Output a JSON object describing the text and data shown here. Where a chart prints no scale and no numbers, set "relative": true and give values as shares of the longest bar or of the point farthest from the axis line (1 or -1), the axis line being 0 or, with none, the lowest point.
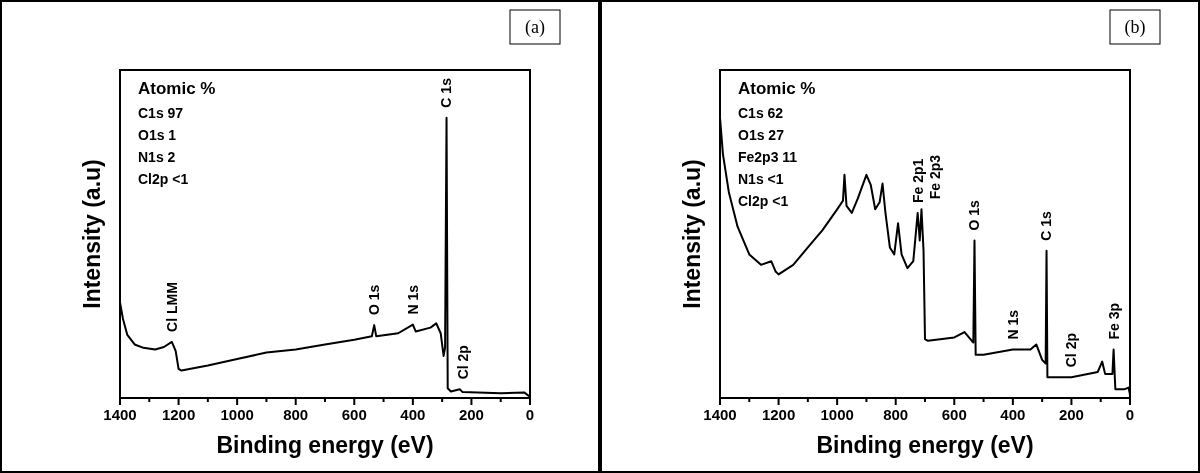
{
  "chart_data": [
    {
      "type": "line",
      "title": "(a)",
      "xlabel": "Binding energy (eV)",
      "ylabel": "Intensity (a.u)",
      "relative": true,
      "xlim": [
        1400,
        0
      ],
      "xticks": [
        1400,
        {
          "value": 1300,
          "label": null
        },
        1200,
        {
          "value": 1100,
          "label": null
        },
        1000,
        {
          "value": 900,
          "label": null
        },
        800,
        {
          "value": 700,
          "label": null
        },
        600,
        {
          "value": 500,
          "label": null
        },
        400,
        {
          "value": 300,
          "label": null
        },
        200,
        {
          "value": 100,
          "label": null
        },
        0
      ],
      "series": [
        {
          "color": "#000000",
          "x": [
            1400,
            1390,
            1375,
            1350,
            1320,
            1280,
            1250,
            1223,
            1210,
            1200,
            1190,
            1100,
            1000,
            900,
            800,
            700,
            600,
            540,
            532,
            525,
            450,
            400,
            390,
            340,
            320,
            305,
            295,
            290,
            285,
            281,
            270,
            240,
            230,
            100,
            20,
            5,
            0
          ],
          "values": [
            0.341,
            0.283,
            0.225,
            0.191,
            0.179,
            0.173,
            0.182,
            0.2,
            0.168,
            0.104,
            0.098,
            0.116,
            0.139,
            0.162,
            0.173,
            0.191,
            0.208,
            0.22,
            0.26,
            0.22,
            0.231,
            0.262,
            0.237,
            0.251,
            0.266,
            0.231,
            0.15,
            0.18,
            1.0,
            0.035,
            0.023,
            0.031,
            0.021,
            0.017,
            0.02,
            0.008,
            0.006
          ]
        }
      ],
      "annotations": [
        "Atomic %",
        "C1s 97",
        "O1s 1",
        "N1s 2",
        "Cl2p <1",
        {
          "text": "Cl LMM",
          "x": 1223,
          "y": 0.2
        },
        {
          "text": "O 1s",
          "x": 532,
          "y": 0.26
        },
        {
          "text": "N 1s",
          "x": 400,
          "y": 0.262
        },
        {
          "text": "C 1s",
          "x": 285,
          "y": 1.0
        },
        {
          "text": "Cl 2p",
          "x": 240,
          "y": 0.031
        }
      ]
    },
    {
      "type": "line",
      "title": "(b)",
      "xlabel": "Binding energy (eV)",
      "ylabel": "Intensity (a.u)",
      "relative": true,
      "xlim": [
        1400,
        0
      ],
      "xticks": [
        1400,
        {
          "value": 1300,
          "label": null
        },
        1200,
        {
          "value": 1100,
          "label": null
        },
        1000,
        {
          "value": 900,
          "label": null
        },
        800,
        {
          "value": 700,
          "label": null
        },
        600,
        {
          "value": 500,
          "label": null
        },
        400,
        {
          "value": 300,
          "label": null
        },
        200,
        {
          "value": 100,
          "label": null
        },
        0
      ],
      "series": [
        {
          "color": "#000000",
          "x": [
            1400,
            1390,
            1370,
            1340,
            1300,
            1260,
            1225,
            1210,
            1200,
            1150,
            1100,
            1050,
            1000,
            980,
            975,
            968,
            950,
            930,
            900,
            885,
            870,
            855,
            845,
            835,
            820,
            805,
            792,
            780,
            760,
            740,
            725,
            718,
            712,
            705,
            700,
            690,
            600,
            565,
            545,
            535,
            531,
            527,
            500,
            400,
            340,
            320,
            300,
            288,
            285,
            282,
            200,
            110,
            95,
            85,
            60,
            56,
            50,
            20,
            5,
            0
          ],
          "values": [
            1.0,
            0.87,
            0.735,
            0.611,
            0.512,
            0.475,
            0.488,
            0.451,
            0.441,
            0.475,
            0.537,
            0.599,
            0.673,
            0.704,
            0.796,
            0.685,
            0.66,
            0.71,
            0.796,
            0.759,
            0.673,
            0.698,
            0.765,
            0.66,
            0.537,
            0.512,
            0.623,
            0.512,
            0.463,
            0.488,
            0.66,
            0.562,
            0.673,
            0.525,
            0.21,
            0.204,
            0.216,
            0.235,
            0.21,
            0.198,
            0.562,
            0.154,
            0.154,
            0.173,
            0.173,
            0.191,
            0.136,
            0.123,
            0.525,
            0.074,
            0.074,
            0.093,
            0.13,
            0.086,
            0.086,
            0.173,
            0.031,
            0.031,
            0.037,
            0.012
          ]
        }
      ],
      "annotations": [
        "Atomic %",
        "C1s 62",
        "O1s 27",
        "Fe2p3 11",
        "N1s <1",
        "Cl2p <1",
        {
          "text": "Fe 2p1",
          "x": 725,
          "y": 0.66
        },
        {
          "text": "Fe 2p3",
          "x": 712,
          "y": 0.673
        },
        {
          "text": "O 1s",
          "x": 531,
          "y": 0.562
        },
        {
          "text": "C 1s",
          "x": 285,
          "y": 0.525
        },
        {
          "text": "N 1s",
          "x": 400,
          "y": 0.173
        },
        {
          "text": "Cl 2p",
          "x": 200,
          "y": 0.074
        },
        {
          "text": "Fe 3p",
          "x": 56,
          "y": 0.173
        }
      ]
    }
  ]
}
